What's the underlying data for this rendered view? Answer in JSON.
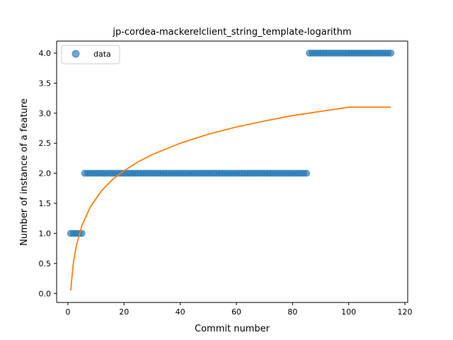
{
  "chart_data": {
    "type": "scatter",
    "title": "jp-cordea-mackerelclient_string_template-logarithm",
    "xlabel": "Commit number",
    "ylabel": "Number of instance of a feature",
    "xlim": [
      -4,
      121
    ],
    "ylim": [
      -0.15,
      4.2
    ],
    "xticks": [
      0,
      20,
      40,
      60,
      80,
      100,
      120
    ],
    "yticks": [
      0.0,
      0.5,
      1.0,
      1.5,
      2.0,
      2.5,
      3.0,
      3.5,
      4.0
    ],
    "xtick_labels": [
      "0",
      "20",
      "40",
      "60",
      "80",
      "100",
      "120"
    ],
    "ytick_labels": [
      "0.0",
      "0.5",
      "1.0",
      "1.5",
      "2.0",
      "2.5",
      "3.0",
      "3.5",
      "4.0"
    ],
    "legend_position": "top-left",
    "series": [
      {
        "name": "data",
        "kind": "scatter",
        "color": "#1f77b4",
        "points": [
          [
            1,
            1
          ],
          [
            2,
            1
          ],
          [
            3,
            1
          ],
          [
            4,
            1
          ],
          [
            5,
            1
          ],
          [
            6,
            2
          ],
          [
            7,
            2
          ],
          [
            8,
            2
          ],
          [
            9,
            2
          ],
          [
            10,
            2
          ],
          [
            11,
            2
          ],
          [
            12,
            2
          ],
          [
            13,
            2
          ],
          [
            14,
            2
          ],
          [
            15,
            2
          ],
          [
            16,
            2
          ],
          [
            17,
            2
          ],
          [
            18,
            2
          ],
          [
            19,
            2
          ],
          [
            20,
            2
          ],
          [
            21,
            2
          ],
          [
            22,
            2
          ],
          [
            23,
            2
          ],
          [
            24,
            2
          ],
          [
            25,
            2
          ],
          [
            26,
            2
          ],
          [
            27,
            2
          ],
          [
            28,
            2
          ],
          [
            29,
            2
          ],
          [
            30,
            2
          ],
          [
            31,
            2
          ],
          [
            32,
            2
          ],
          [
            33,
            2
          ],
          [
            34,
            2
          ],
          [
            35,
            2
          ],
          [
            36,
            2
          ],
          [
            37,
            2
          ],
          [
            38,
            2
          ],
          [
            39,
            2
          ],
          [
            40,
            2
          ],
          [
            41,
            2
          ],
          [
            42,
            2
          ],
          [
            43,
            2
          ],
          [
            44,
            2
          ],
          [
            45,
            2
          ],
          [
            46,
            2
          ],
          [
            47,
            2
          ],
          [
            48,
            2
          ],
          [
            49,
            2
          ],
          [
            50,
            2
          ],
          [
            51,
            2
          ],
          [
            52,
            2
          ],
          [
            53,
            2
          ],
          [
            54,
            2
          ],
          [
            55,
            2
          ],
          [
            56,
            2
          ],
          [
            57,
            2
          ],
          [
            58,
            2
          ],
          [
            59,
            2
          ],
          [
            60,
            2
          ],
          [
            61,
            2
          ],
          [
            62,
            2
          ],
          [
            63,
            2
          ],
          [
            64,
            2
          ],
          [
            65,
            2
          ],
          [
            66,
            2
          ],
          [
            67,
            2
          ],
          [
            68,
            2
          ],
          [
            69,
            2
          ],
          [
            70,
            2
          ],
          [
            71,
            2
          ],
          [
            72,
            2
          ],
          [
            73,
            2
          ],
          [
            74,
            2
          ],
          [
            75,
            2
          ],
          [
            76,
            2
          ],
          [
            77,
            2
          ],
          [
            78,
            2
          ],
          [
            79,
            2
          ],
          [
            80,
            2
          ],
          [
            81,
            2
          ],
          [
            82,
            2
          ],
          [
            83,
            2
          ],
          [
            84,
            2
          ],
          [
            85,
            2
          ],
          [
            86,
            4
          ],
          [
            87,
            4
          ],
          [
            88,
            4
          ],
          [
            89,
            4
          ],
          [
            90,
            4
          ],
          [
            91,
            4
          ],
          [
            92,
            4
          ],
          [
            93,
            4
          ],
          [
            94,
            4
          ],
          [
            95,
            4
          ],
          [
            96,
            4
          ],
          [
            97,
            4
          ],
          [
            98,
            4
          ],
          [
            99,
            4
          ],
          [
            100,
            4
          ],
          [
            101,
            4
          ],
          [
            102,
            4
          ],
          [
            103,
            4
          ],
          [
            104,
            4
          ],
          [
            105,
            4
          ],
          [
            106,
            4
          ],
          [
            107,
            4
          ],
          [
            108,
            4
          ],
          [
            109,
            4
          ],
          [
            110,
            4
          ],
          [
            111,
            4
          ],
          [
            112,
            4
          ],
          [
            113,
            4
          ],
          [
            114,
            4
          ],
          [
            115,
            4
          ]
        ]
      },
      {
        "kind": "line",
        "color": "#ff7f0e",
        "points": [
          [
            1,
            0.05
          ],
          [
            2,
            0.52
          ],
          [
            3,
            0.79
          ],
          [
            5,
            1.13
          ],
          [
            8,
            1.44
          ],
          [
            12,
            1.71
          ],
          [
            16,
            1.9
          ],
          [
            20,
            2.04
          ],
          [
            25,
            2.19
          ],
          [
            30,
            2.31
          ],
          [
            40,
            2.5
          ],
          [
            50,
            2.65
          ],
          [
            60,
            2.77
          ],
          [
            70,
            2.87
          ],
          [
            80,
            2.96
          ],
          [
            90,
            3.03
          ],
          [
            100,
            3.1
          ],
          [
            115,
            3.1
          ]
        ]
      }
    ]
  }
}
